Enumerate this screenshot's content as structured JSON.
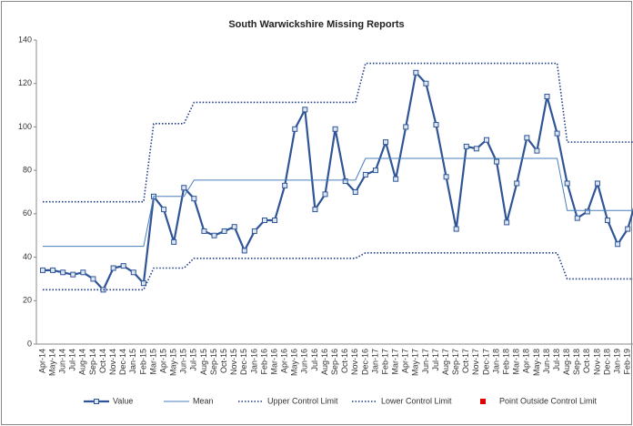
{
  "chart_data": {
    "type": "line",
    "title": "South Warwickshire Missing Reports",
    "categories": [
      "Apr-14",
      "May-14",
      "Jun-14",
      "Jul-14",
      "Aug-14",
      "Sep-14",
      "Oct-14",
      "Nov-14",
      "Dec-14",
      "Jan-15",
      "Feb-15",
      "Mar-15",
      "Apr-15",
      "May-15",
      "Jun-15",
      "Jul-15",
      "Aug-15",
      "Sep-15",
      "Oct-15",
      "Nov-15",
      "Dec-15",
      "Jan-16",
      "Feb-16",
      "Mar-16",
      "Apr-16",
      "May-16",
      "Jun-16",
      "Jul-16",
      "Aug-16",
      "Sep-16",
      "Oct-16",
      "Nov-16",
      "Dec-16",
      "Jan-17",
      "Feb-17",
      "Mar-17",
      "Apr-17",
      "May-17",
      "Jun-17",
      "Jul-17",
      "Aug-17",
      "Sep-17",
      "Oct-17",
      "Nov-17",
      "Dec-17",
      "Jan-18",
      "Feb-18",
      "Mar-18",
      "Apr-18",
      "May-18",
      "Jun-18",
      "Jul-18",
      "Aug-18",
      "Sep-18",
      "Oct-18",
      "Nov-18",
      "Dec-18",
      "Jan-19",
      "Feb-19",
      null
    ],
    "series": [
      {
        "name": "Value",
        "color": "#2f5597",
        "style": "solid",
        "marker": "square",
        "values": [
          34,
          34,
          33,
          32,
          33,
          30,
          25,
          35,
          36,
          33,
          28,
          68,
          62,
          47,
          72,
          67,
          52,
          50,
          52,
          54,
          43,
          52,
          57,
          57,
          73,
          99,
          108,
          62,
          69,
          99,
          75,
          70,
          78,
          80,
          93,
          76,
          100,
          125,
          120,
          101,
          77,
          53,
          91,
          90,
          94,
          84,
          56,
          74,
          95,
          89,
          114,
          97,
          74,
          58,
          61,
          74,
          57,
          46,
          53,
          69
        ]
      },
      {
        "name": "Mean",
        "color": "#4a7ebb",
        "style": "thin",
        "marker": null,
        "values": [
          45,
          45,
          45,
          45,
          45,
          45,
          45,
          45,
          45,
          45,
          45,
          68,
          68,
          68,
          68,
          75.5,
          75.5,
          75.5,
          75.5,
          75.5,
          75.5,
          75.5,
          75.5,
          75.5,
          75.5,
          75.5,
          75.5,
          75.5,
          75.5,
          75.5,
          75.5,
          75.5,
          85.5,
          85.5,
          85.5,
          85.5,
          85.5,
          85.5,
          85.5,
          85.5,
          85.5,
          85.5,
          85.5,
          85.5,
          85.5,
          85.5,
          85.5,
          85.5,
          85.5,
          85.5,
          85.5,
          85.5,
          61.5,
          61.5,
          61.5,
          61.5,
          61.5,
          61.5,
          61.5,
          61.5
        ]
      },
      {
        "name": "Upper Control Limit",
        "color": "#1f3c88",
        "style": "dotted",
        "marker": null,
        "values": [
          65.5,
          65.5,
          65.5,
          65.5,
          65.5,
          65.5,
          65.5,
          65.5,
          65.5,
          65.5,
          65.5,
          101.5,
          101.5,
          101.5,
          101.5,
          111.3,
          111.3,
          111.3,
          111.3,
          111.3,
          111.3,
          111.3,
          111.3,
          111.3,
          111.3,
          111.3,
          111.3,
          111.3,
          111.3,
          111.3,
          111.3,
          111.3,
          129.3,
          129.3,
          129.3,
          129.3,
          129.3,
          129.3,
          129.3,
          129.3,
          129.3,
          129.3,
          129.3,
          129.3,
          129.3,
          129.3,
          129.3,
          129.3,
          129.3,
          129.3,
          129.3,
          129.3,
          93,
          93,
          93,
          93,
          93,
          93,
          93,
          93
        ]
      },
      {
        "name": "Lower Control Limit",
        "color": "#1f3c88",
        "style": "dotted",
        "marker": null,
        "values": [
          25,
          25,
          25,
          25,
          25,
          25,
          25,
          25,
          25,
          25,
          25,
          35,
          35,
          35,
          35,
          39.5,
          39.5,
          39.5,
          39.5,
          39.5,
          39.5,
          39.5,
          39.5,
          39.5,
          39.5,
          39.5,
          39.5,
          39.5,
          39.5,
          39.5,
          39.5,
          39.5,
          42,
          42,
          42,
          42,
          42,
          42,
          42,
          42,
          42,
          42,
          42,
          42,
          42,
          42,
          42,
          42,
          42,
          42,
          42,
          42,
          30,
          30,
          30,
          30,
          30,
          30,
          30,
          30
        ]
      },
      {
        "name": "Point Outside Control Limit",
        "color": "#e00000",
        "style": "none",
        "marker": "square",
        "values": [
          null,
          null,
          null,
          null,
          null,
          null,
          null,
          null,
          null,
          null,
          null,
          null,
          null,
          null,
          null,
          null,
          null,
          null,
          null,
          null,
          null,
          null,
          null,
          null,
          null,
          null,
          null,
          null,
          null,
          null,
          null,
          null,
          null,
          null,
          null,
          null,
          null,
          null,
          null,
          null,
          null,
          null,
          null,
          null,
          null,
          null,
          null,
          null,
          null,
          null,
          null,
          null,
          null,
          null,
          null,
          null,
          null,
          null,
          null,
          null
        ]
      }
    ],
    "ylim": [
      0,
      140
    ],
    "yticks": [
      0,
      20,
      40,
      60,
      80,
      100,
      120,
      140
    ],
    "grid": false,
    "legend": "bottom"
  }
}
